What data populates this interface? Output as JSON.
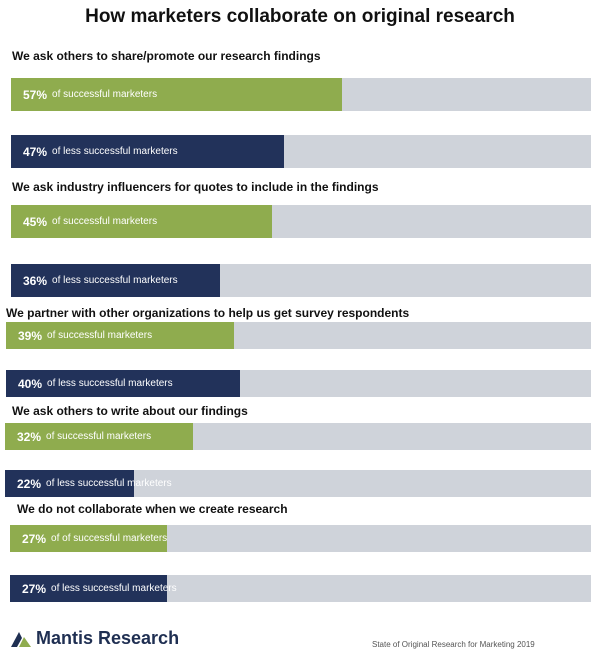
{
  "colors": {
    "successful": "#8fac4e",
    "less_successful": "#22325a",
    "track": "#cfd3da"
  },
  "chart_data": {
    "type": "bar",
    "orientation": "horizontal",
    "title": "How marketers collaborate on original research",
    "xlim": [
      0,
      100
    ],
    "categories": [
      "We ask others to share/promote our research findings",
      "We ask industry influencers for quotes to include in the findings",
      "We partner with other organizations to help us get survey respondents",
      "We ask others to write about our findings",
      "We do not collaborate when we create research"
    ],
    "series": [
      {
        "name": "of successful marketers",
        "values": [
          57,
          45,
          39,
          32,
          27
        ]
      },
      {
        "name": "of less successful marketers",
        "values": [
          47,
          36,
          40,
          22,
          27
        ]
      }
    ],
    "bars": [
      {
        "pct": "57%",
        "text": "of successful marketers"
      },
      {
        "pct": "47%",
        "text": "of less successful marketers"
      },
      {
        "pct": "45%",
        "text": "of successful marketers"
      },
      {
        "pct": "36%",
        "text": "of less successful marketers"
      },
      {
        "pct": "39%",
        "text": "of successful marketers"
      },
      {
        "pct": "40%",
        "text": "of less successful marketers"
      },
      {
        "pct": "32%",
        "text": "of successful marketers"
      },
      {
        "pct": "22%",
        "text": "of less successful marketers"
      },
      {
        "pct": "27%",
        "text": "of of successful marketers"
      },
      {
        "pct": "27%",
        "text": "of less successful marketers"
      }
    ]
  },
  "footer": {
    "logo_text": "Mantis Research",
    "source": "State of Original Research for Marketing 2019"
  }
}
